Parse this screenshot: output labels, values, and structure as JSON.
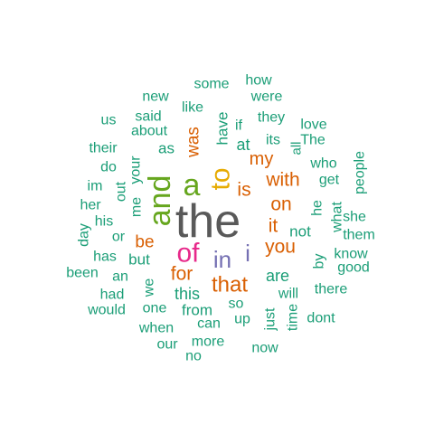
{
  "word_cloud": {
    "words": [
      {
        "text": "the",
        "color": "#595959"
      },
      {
        "text": "and",
        "color": "#66A61E"
      },
      {
        "text": "a",
        "color": "#66A61E"
      },
      {
        "text": "to",
        "color": "#E6AB02"
      },
      {
        "text": "of",
        "color": "#E7298A"
      },
      {
        "text": "in",
        "color": "#7570B3"
      },
      {
        "text": "i",
        "color": "#7570B3"
      },
      {
        "text": "that",
        "color": "#D95F02"
      },
      {
        "text": "is",
        "color": "#D95F02"
      },
      {
        "text": "it",
        "color": "#D95F02"
      },
      {
        "text": "you",
        "color": "#D95F02"
      },
      {
        "text": "for",
        "color": "#D95F02"
      },
      {
        "text": "on",
        "color": "#D95F02"
      },
      {
        "text": "with",
        "color": "#D95F02"
      },
      {
        "text": "my",
        "color": "#D95F02"
      },
      {
        "text": "was",
        "color": "#D95F02"
      },
      {
        "text": "be",
        "color": "#D95F02"
      },
      {
        "text": "this",
        "color": "#1B9E77"
      },
      {
        "text": "are",
        "color": "#1B9E77"
      },
      {
        "text": "at",
        "color": "#1B9E77"
      },
      {
        "text": "have",
        "color": "#1B9E77"
      },
      {
        "text": "not",
        "color": "#1B9E77"
      },
      {
        "text": "but",
        "color": "#1B9E77"
      },
      {
        "text": "from",
        "color": "#1B9E77"
      },
      {
        "text": "so",
        "color": "#1B9E77"
      },
      {
        "text": "will",
        "color": "#1B9E77"
      },
      {
        "text": "me",
        "color": "#1B9E77"
      },
      {
        "text": "we",
        "color": "#1B9E77"
      },
      {
        "text": "he",
        "color": "#1B9E77"
      },
      {
        "text": "as",
        "color": "#1B9E77"
      },
      {
        "text": "like",
        "color": "#1B9E77"
      },
      {
        "text": "some",
        "color": "#1B9E77"
      },
      {
        "text": "how",
        "color": "#1B9E77"
      },
      {
        "text": "new",
        "color": "#1B9E77"
      },
      {
        "text": "were",
        "color": "#1B9E77"
      },
      {
        "text": "said",
        "color": "#1B9E77"
      },
      {
        "text": "us",
        "color": "#1B9E77"
      },
      {
        "text": "if",
        "color": "#1B9E77"
      },
      {
        "text": "they",
        "color": "#1B9E77"
      },
      {
        "text": "love",
        "color": "#1B9E77"
      },
      {
        "text": "about",
        "color": "#1B9E77"
      },
      {
        "text": "all",
        "color": "#1B9E77"
      },
      {
        "text": "its",
        "color": "#1B9E77"
      },
      {
        "text": "The",
        "color": "#1B9E77"
      },
      {
        "text": "their",
        "color": "#1B9E77"
      },
      {
        "text": "who",
        "color": "#1B9E77"
      },
      {
        "text": "do",
        "color": "#1B9E77"
      },
      {
        "text": "your",
        "color": "#1B9E77"
      },
      {
        "text": "people",
        "color": "#1B9E77"
      },
      {
        "text": "get",
        "color": "#1B9E77"
      },
      {
        "text": "im",
        "color": "#1B9E77"
      },
      {
        "text": "out",
        "color": "#1B9E77"
      },
      {
        "text": "her",
        "color": "#1B9E77"
      },
      {
        "text": "what",
        "color": "#1B9E77"
      },
      {
        "text": "she",
        "color": "#1B9E77"
      },
      {
        "text": "his",
        "color": "#1B9E77"
      },
      {
        "text": "day",
        "color": "#1B9E77"
      },
      {
        "text": "them",
        "color": "#1B9E77"
      },
      {
        "text": "or",
        "color": "#1B9E77"
      },
      {
        "text": "know",
        "color": "#1B9E77"
      },
      {
        "text": "has",
        "color": "#1B9E77"
      },
      {
        "text": "by",
        "color": "#1B9E77"
      },
      {
        "text": "good",
        "color": "#1B9E77"
      },
      {
        "text": "been",
        "color": "#1B9E77"
      },
      {
        "text": "an",
        "color": "#1B9E77"
      },
      {
        "text": "there",
        "color": "#1B9E77"
      },
      {
        "text": "had",
        "color": "#1B9E77"
      },
      {
        "text": "would",
        "color": "#1B9E77"
      },
      {
        "text": "one",
        "color": "#1B9E77"
      },
      {
        "text": "just",
        "color": "#1B9E77"
      },
      {
        "text": "time",
        "color": "#1B9E77"
      },
      {
        "text": "dont",
        "color": "#1B9E77"
      },
      {
        "text": "can",
        "color": "#1B9E77"
      },
      {
        "text": "up",
        "color": "#1B9E77"
      },
      {
        "text": "when",
        "color": "#1B9E77"
      },
      {
        "text": "our",
        "color": "#1B9E77"
      },
      {
        "text": "more",
        "color": "#1B9E77"
      },
      {
        "text": "now",
        "color": "#1B9E77"
      },
      {
        "text": "no",
        "color": "#1B9E77"
      }
    ]
  }
}
